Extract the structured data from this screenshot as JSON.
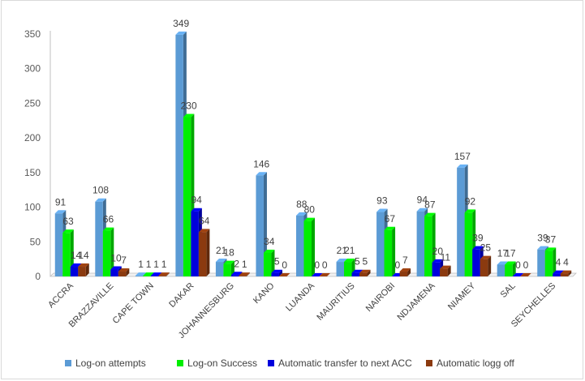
{
  "chart_data": {
    "type": "bar",
    "title": "",
    "xlabel": "",
    "ylabel": "",
    "ylim": [
      0,
      350
    ],
    "yticks": [
      0,
      50,
      100,
      150,
      200,
      250,
      300,
      350
    ],
    "grid": false,
    "legend_position": "bottom",
    "categories": [
      "ACCRA",
      "BRAZZAVILLE",
      "CAPE TOWN",
      "DAKAR",
      "JOHANNESBURG",
      "KANO",
      "LUANDA",
      "MAURITIUS",
      "NAIROBI",
      "NDJAMENA",
      "NIAMEY",
      "SAL",
      "SEYCHELLES"
    ],
    "series": [
      {
        "name": "Log-on attempts",
        "color": "#5b9bd5",
        "values": [
          91,
          108,
          1,
          349,
          21,
          146,
          88,
          21,
          93,
          94,
          157,
          17,
          39
        ]
      },
      {
        "name": "Log-on Success",
        "color": "#00ee00",
        "values": [
          63,
          66,
          1,
          230,
          18,
          34,
          80,
          21,
          67,
          87,
          92,
          17,
          37
        ]
      },
      {
        "name": "Automatic transfer to next ACC",
        "color": "#0000dd",
        "values": [
          14,
          10,
          1,
          94,
          2,
          5,
          0,
          5,
          0,
          20,
          39,
          0,
          4
        ]
      },
      {
        "name": "Automatic logg off",
        "color": "#8b3a0f",
        "values": [
          14,
          7,
          1,
          64,
          1,
          0,
          0,
          5,
          7,
          11,
          25,
          0,
          4
        ]
      }
    ]
  }
}
